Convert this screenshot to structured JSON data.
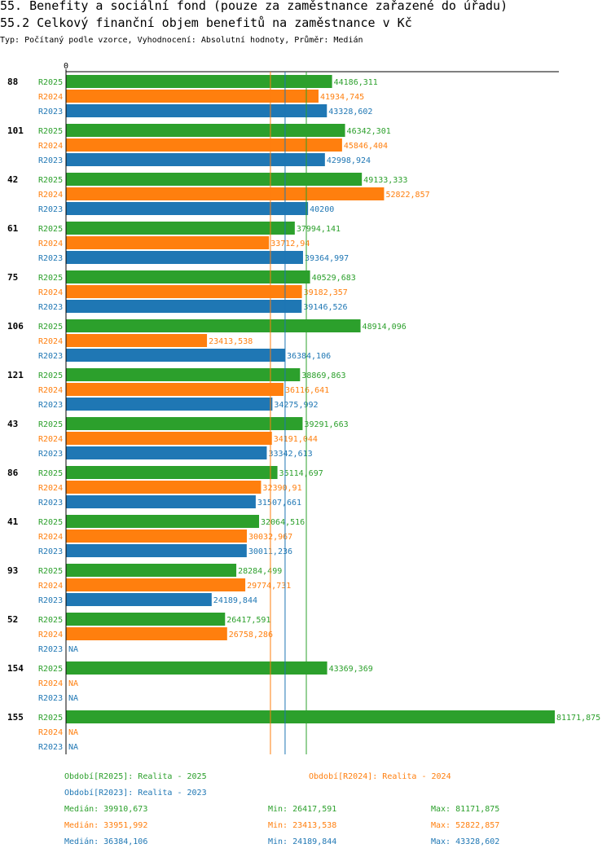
{
  "title": "55. Benefity a sociální fond (pouze za zaměstnance zařazené do úřadu)",
  "subtitle": "55.2 Celkový finanční objem benefitů na zaměstnance v Kč",
  "type_line": "Typ: Počítaný podle vzorce, Vyhodnocení: Absolutní hodnoty, Průměr: Medián",
  "colors": {
    "R2025": "#2ca02c",
    "R2024": "#ff7f0e",
    "R2023": "#1f77b4"
  },
  "chart_data": {
    "type": "bar",
    "orientation": "horizontal",
    "axis_zero_label": "0",
    "xlim": [
      0,
      81171.875
    ],
    "categories": [
      "88",
      "101",
      "42",
      "61",
      "75",
      "106",
      "121",
      "43",
      "86",
      "41",
      "93",
      "52",
      "154",
      "155"
    ],
    "series": [
      {
        "name": "R2025",
        "values": [
          44186.311,
          46342.301,
          49133.333,
          37994.141,
          40529.683,
          48914.096,
          38869.863,
          39291.663,
          35114.697,
          32064.516,
          28284.499,
          26417.591,
          43369.369,
          81171.875
        ],
        "labels": [
          "44186,311",
          "46342,301",
          "49133,333",
          "37994,141",
          "40529,683",
          "48914,096",
          "38869,863",
          "39291,663",
          "35114,697",
          "32064,516",
          "28284,499",
          "26417,591",
          "43369,369",
          "81171,875"
        ]
      },
      {
        "name": "R2024",
        "values": [
          41934.745,
          45846.404,
          52822.857,
          33712.94,
          39182.357,
          23413.538,
          36116.641,
          34191.044,
          32390.91,
          30032.967,
          29774.731,
          26758.286,
          null,
          null
        ],
        "labels": [
          "41934,745",
          "45846,404",
          "52822,857",
          "33712,94",
          "39182,357",
          "23413,538",
          "36116,641",
          "34191,044",
          "32390,91",
          "30032,967",
          "29774,731",
          "26758,286",
          "NA",
          "NA"
        ]
      },
      {
        "name": "R2023",
        "values": [
          43328.602,
          42998.924,
          40200,
          39364.997,
          39146.526,
          36384.106,
          34275.992,
          33342.613,
          31507.661,
          30011.236,
          24189.844,
          null,
          null,
          null
        ],
        "labels": [
          "43328,602",
          "42998,924",
          "40200",
          "39364,997",
          "39146,526",
          "36384,106",
          "34275,992",
          "33342,613",
          "31507,661",
          "30011,236",
          "24189,844",
          "NA",
          "NA",
          "NA"
        ]
      }
    ],
    "reference_lines": [
      {
        "series": "R2025",
        "stat": "median",
        "value": 39910.673
      },
      {
        "series": "R2024",
        "stat": "median",
        "value": 33951.992
      },
      {
        "series": "R2023",
        "stat": "median",
        "value": 36384.106
      }
    ]
  },
  "legend": {
    "r2025": "Období[R2025]: Realita - 2025",
    "r2024": "Období[R2024]: Realita - 2024",
    "r2023": "Období[R2023]: Realita - 2023"
  },
  "stats": [
    {
      "median": "Medián: 39910,673",
      "min": "Min: 26417,591",
      "max": "Max: 81171,875"
    },
    {
      "median": "Medián: 33951,992",
      "min": "Min: 23413,538",
      "max": "Max: 52822,857"
    },
    {
      "median": "Medián: 36384,106",
      "min": "Min: 24189,844",
      "max": "Max: 43328,602"
    }
  ]
}
